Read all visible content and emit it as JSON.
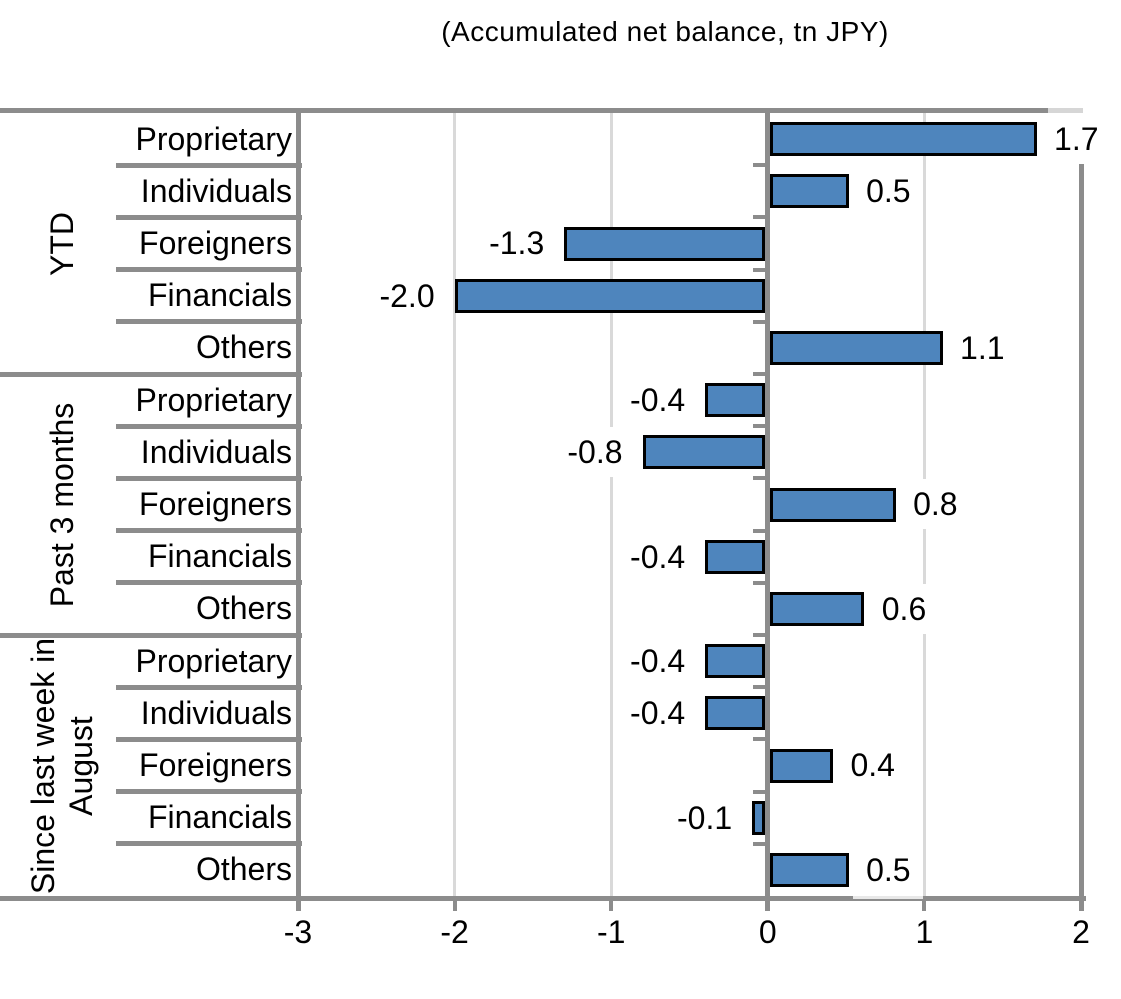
{
  "colors": {
    "bar_fill": "#4E85BD",
    "bar_border": "#000000",
    "axis_gray": "#8C8C8C",
    "axis_light_gray": "#D6D6D6",
    "gridline_gray": "#D9D9D9",
    "text": "#000000"
  },
  "chart_data": {
    "type": "bar",
    "orientation": "horizontal",
    "title": "(Accumulated net balance, tn JPY)",
    "xlim": [
      -3,
      2
    ],
    "x_tick_values": [
      -3,
      -2,
      -1,
      0,
      1,
      2
    ],
    "x_tick_labels": [
      "-3",
      "-2",
      "-1",
      "0",
      "1",
      "2"
    ],
    "gridline_values": [
      -2,
      -1,
      1
    ],
    "grid": true,
    "legend_position": "none",
    "groups": [
      {
        "label_lines": [
          "YTD"
        ],
        "rows": [
          {
            "category": "Proprietary",
            "value": 1.7,
            "label": "1.7"
          },
          {
            "category": "Individuals",
            "value": 0.5,
            "label": "0.5"
          },
          {
            "category": "Foreigners",
            "value": -1.3,
            "label": "-1.3"
          },
          {
            "category": "Financials",
            "value": -2.0,
            "label": "-2.0"
          },
          {
            "category": "Others",
            "value": 1.1,
            "label": "1.1"
          }
        ]
      },
      {
        "label_lines": [
          "Past 3 months"
        ],
        "rows": [
          {
            "category": "Proprietary",
            "value": -0.4,
            "label": "-0.4"
          },
          {
            "category": "Individuals",
            "value": -0.8,
            "label": "-0.8"
          },
          {
            "category": "Foreigners",
            "value": 0.8,
            "label": "0.8"
          },
          {
            "category": "Financials",
            "value": -0.4,
            "label": "-0.4"
          },
          {
            "category": "Others",
            "value": 0.6,
            "label": "0.6"
          }
        ]
      },
      {
        "label_lines": [
          "Since last week in",
          "August"
        ],
        "rows": [
          {
            "category": "Proprietary",
            "value": -0.4,
            "label": "-0.4"
          },
          {
            "category": "Individuals",
            "value": -0.4,
            "label": "-0.4"
          },
          {
            "category": "Foreigners",
            "value": 0.4,
            "label": "0.4"
          },
          {
            "category": "Financials",
            "value": -0.1,
            "label": "-0.1"
          },
          {
            "category": "Others",
            "value": 0.5,
            "label": "0.5"
          }
        ]
      }
    ]
  }
}
